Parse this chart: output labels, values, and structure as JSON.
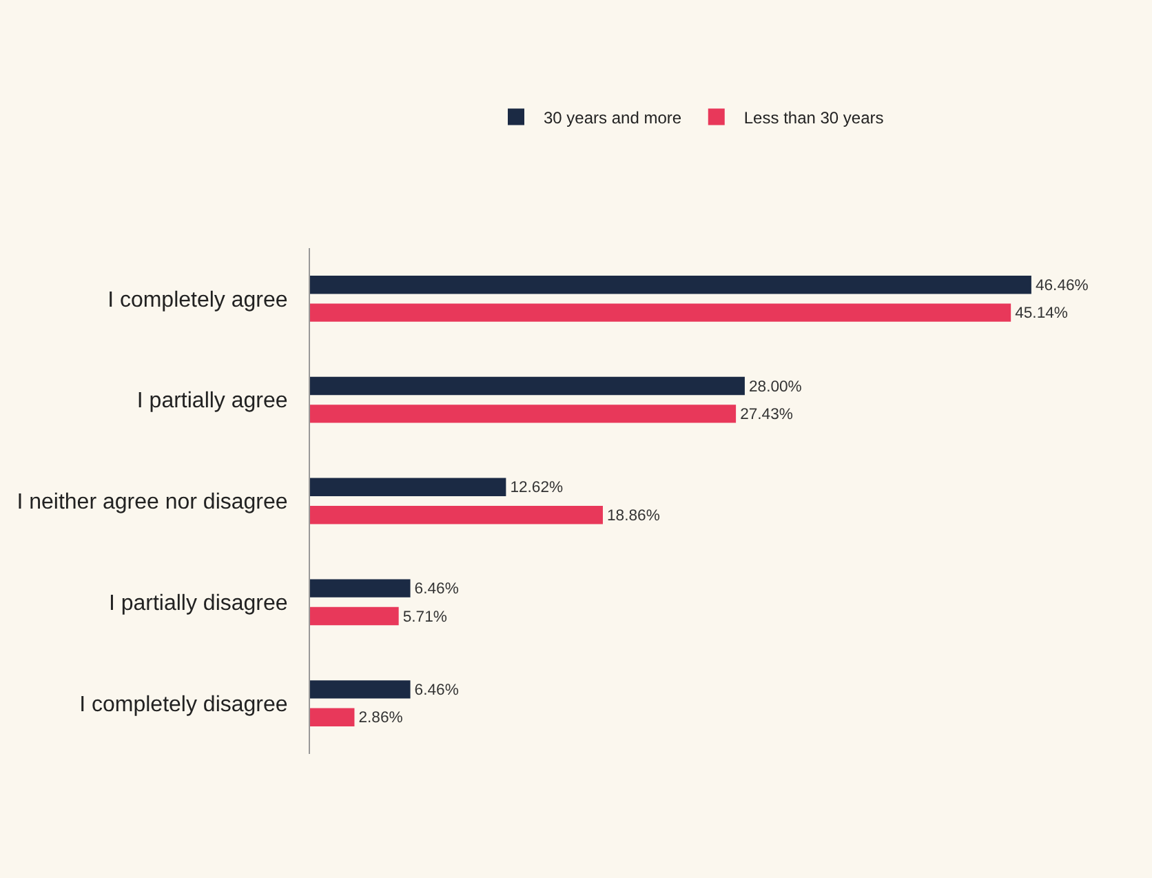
{
  "chart_data": {
    "type": "bar",
    "orientation": "horizontal",
    "legend": "top",
    "categories": [
      "I completely agree",
      "I partially agree",
      "I neither agree nor disagree",
      "I partially disagree",
      "I completely disagree"
    ],
    "series": [
      {
        "name": "30 years and more",
        "color": "#1b2a44",
        "values": [
          46.46,
          28.0,
          12.62,
          6.46,
          6.46
        ],
        "value_labels": [
          "46.46%",
          "28.00%",
          "12.62%",
          "6.46%",
          "6.46%"
        ]
      },
      {
        "name": "Less than 30 years",
        "color": "#e8385a",
        "values": [
          45.14,
          27.43,
          18.86,
          5.71,
          2.86
        ],
        "value_labels": [
          "45.14%",
          "27.43%",
          "18.86%",
          "5.71%",
          "2.86%"
        ]
      }
    ]
  }
}
